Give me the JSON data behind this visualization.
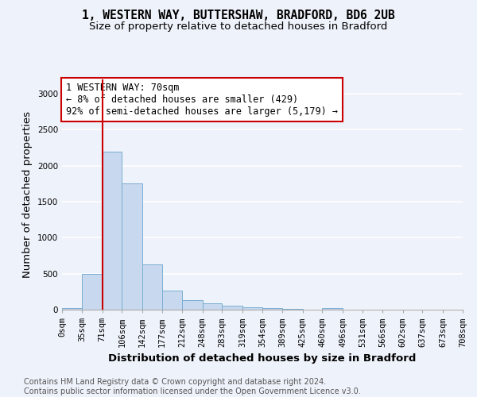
{
  "title_line1": "1, WESTERN WAY, BUTTERSHAW, BRADFORD, BD6 2UB",
  "title_line2": "Size of property relative to detached houses in Bradford",
  "xlabel": "Distribution of detached houses by size in Bradford",
  "ylabel": "Number of detached properties",
  "footnote": "Contains HM Land Registry data © Crown copyright and database right 2024.\nContains public sector information licensed under the Open Government Licence v3.0.",
  "bin_edges": [
    0,
    35,
    71,
    106,
    142,
    177,
    212,
    248,
    283,
    319,
    354,
    389,
    425,
    460,
    496,
    531,
    566,
    602,
    637,
    673,
    708
  ],
  "bar_heights": [
    20,
    500,
    2200,
    1750,
    625,
    260,
    130,
    90,
    50,
    30,
    20,
    10,
    5,
    20,
    5,
    5,
    3,
    0,
    0,
    0
  ],
  "bar_color": "#c8d8ee",
  "bar_edgecolor": "#7aaed4",
  "vline_x": 71,
  "vline_color": "#cc0000",
  "vline_linewidth": 1.5,
  "annotation_text": "1 WESTERN WAY: 70sqm\n← 8% of detached houses are smaller (429)\n92% of semi-detached houses are larger (5,179) →",
  "annotation_box_color": "white",
  "annotation_border_color": "#cc0000",
  "ylim": [
    0,
    3200
  ],
  "yticks": [
    0,
    500,
    1000,
    1500,
    2000,
    2500,
    3000
  ],
  "tick_labels": [
    "0sqm",
    "35sqm",
    "71sqm",
    "106sqm",
    "142sqm",
    "177sqm",
    "212sqm",
    "248sqm",
    "283sqm",
    "319sqm",
    "354sqm",
    "389sqm",
    "425sqm",
    "460sqm",
    "496sqm",
    "531sqm",
    "566sqm",
    "602sqm",
    "637sqm",
    "673sqm",
    "708sqm"
  ],
  "bg_color": "#eef2fa",
  "grid_color": "white",
  "title_fontsize": 10.5,
  "subtitle_fontsize": 9.5,
  "axis_label_fontsize": 9.5,
  "tick_fontsize": 7.5,
  "annotation_fontsize": 8.5,
  "footnote_fontsize": 7.0
}
